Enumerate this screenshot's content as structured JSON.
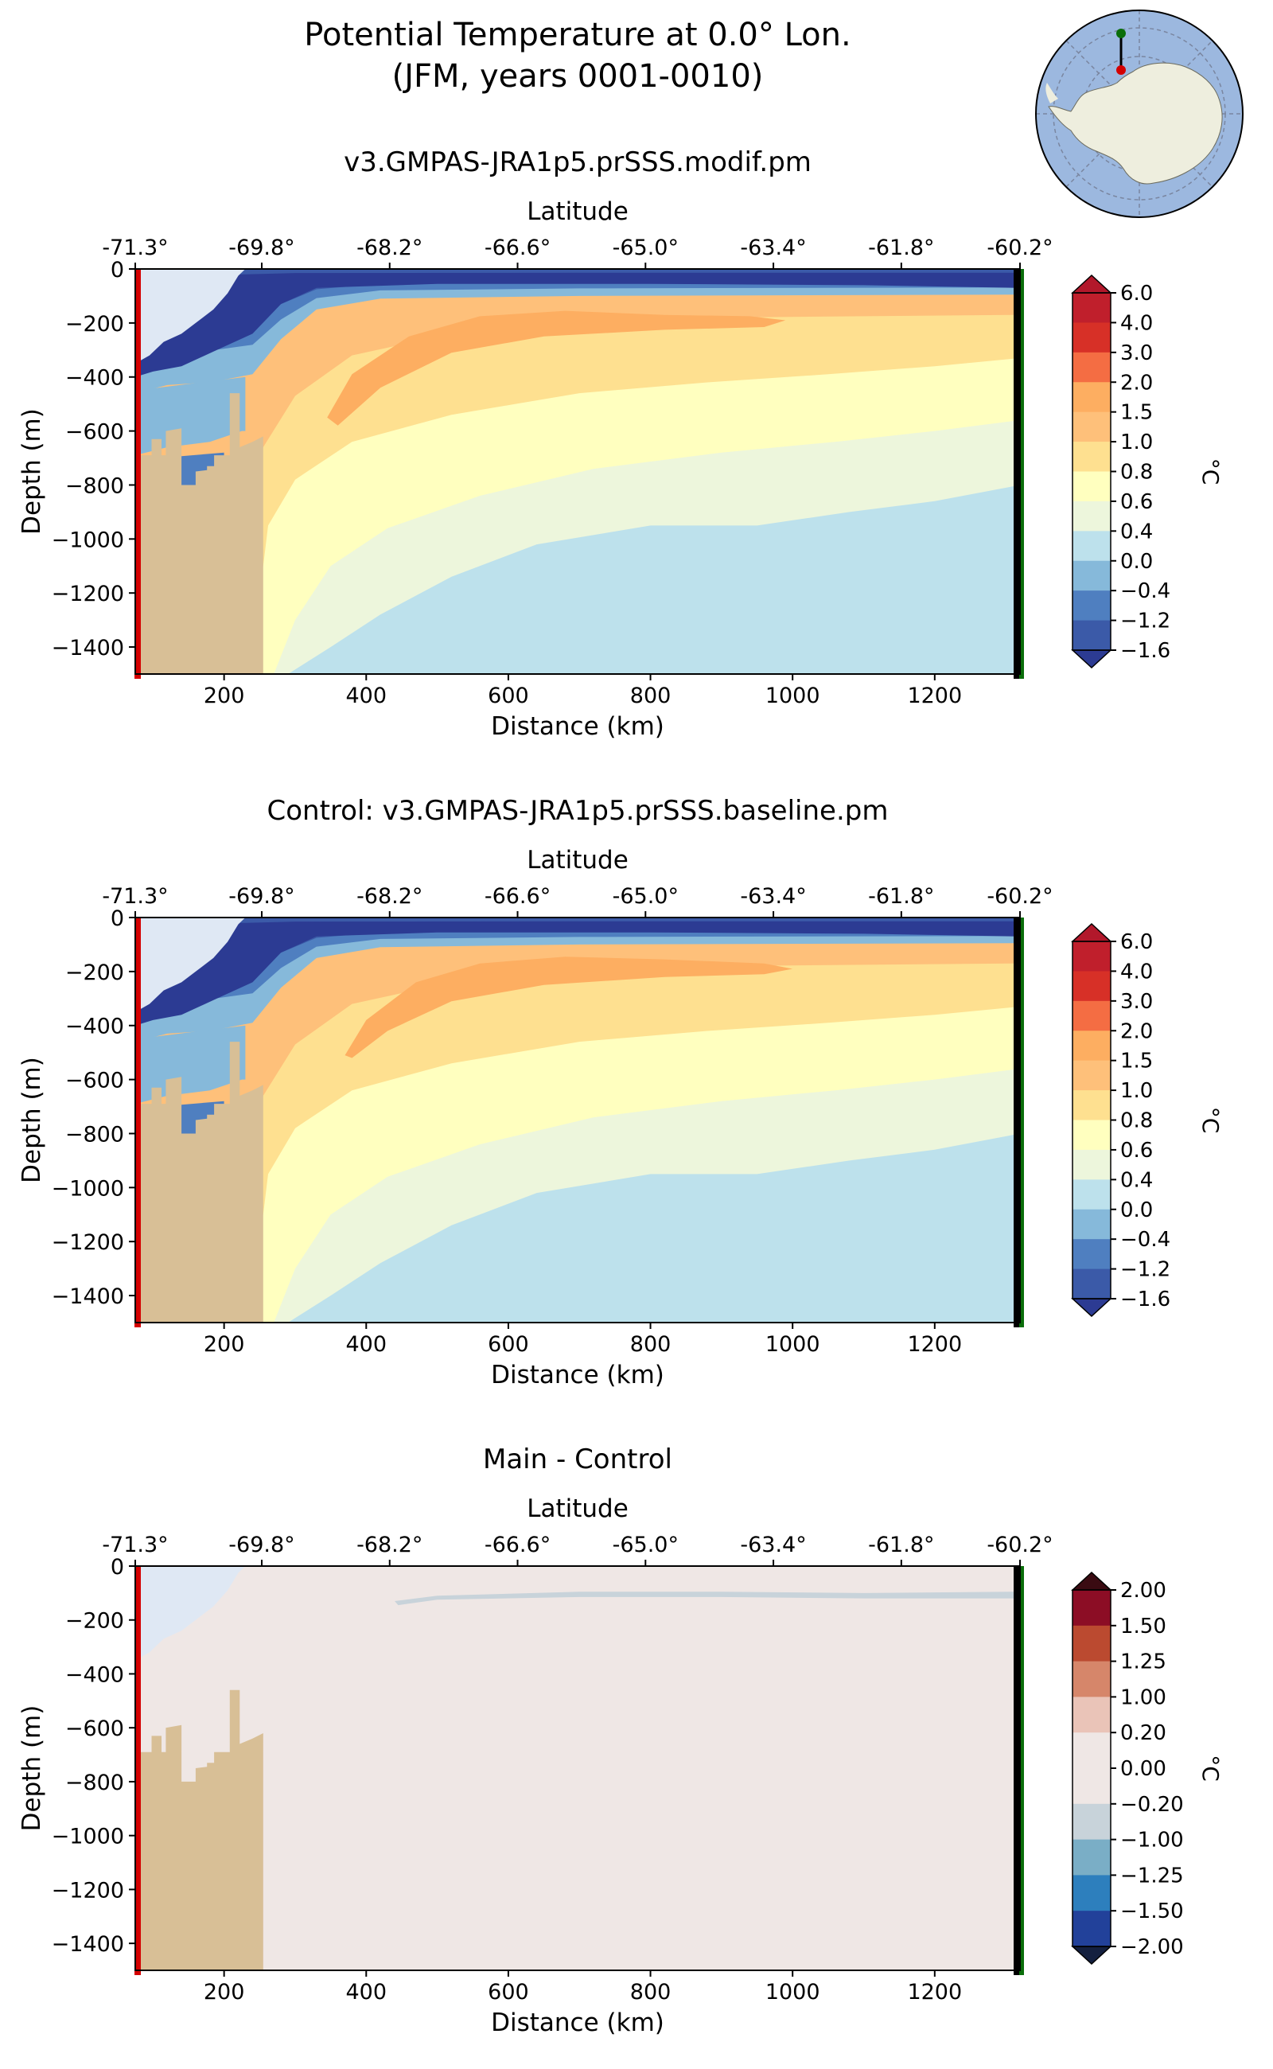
{
  "figure": {
    "title_line1": "Potential Temperature at 0.0° Lon.",
    "title_line2": "(JFM, years 0001-0010)"
  },
  "colors": {
    "land": "#d8bf96",
    "ice_shelf_cavity": "#dfe8f4",
    "start_marker": "#d40000",
    "end_marker": "#0a6e0a",
    "map_ocean": "#9cb8df",
    "map_land": "#eeeede"
  },
  "chart_data": [
    {
      "type": "heatmap",
      "title": "v3.GMPAS-JRA1p5.prSSS.modif.pm",
      "xlabel": "Distance (km)",
      "ylabel": "Depth (m)",
      "top_xlabel": "Latitude",
      "xlim": [
        75,
        1320
      ],
      "ylim": [
        -1500,
        0
      ],
      "x_ticks": [
        200,
        400,
        600,
        800,
        1000,
        1200
      ],
      "y_ticks": [
        0,
        -200,
        -400,
        -600,
        -800,
        -1000,
        -1200,
        -1400
      ],
      "y_tick_labels": [
        "0",
        "−200",
        "−400",
        "−600",
        "−800",
        "−1000",
        "−1200",
        "−1400"
      ],
      "latitude_ticks": [
        "-71.3°",
        "-69.8°",
        "-68.2°",
        "-66.6°",
        "-65.0°",
        "-63.4°",
        "-61.8°",
        "-60.2°"
      ],
      "latitude_tick_distance_km": [
        75,
        253,
        433,
        613,
        793,
        973,
        1153,
        1320
      ],
      "colorbar": {
        "label": "°C",
        "levels": [
          "6.0",
          "4.0",
          "3.0",
          "2.0",
          "1.5",
          "1.0",
          "0.8",
          "0.6",
          "0.4",
          "0.0",
          "−0.4",
          "−1.2",
          "−1.6"
        ],
        "colors": [
          "#c01f2c",
          "#d73027",
          "#f46d43",
          "#fdae61",
          "#fec07a",
          "#fee090",
          "#ffffbf",
          "#edf6dc",
          "#bde1ec",
          "#86b9da",
          "#4f7fc0",
          "#3b5aa8"
        ],
        "over_color": "#b2182b",
        "under_color": "#2c3b93"
      },
      "contour_depths_m": {
        "isotherm_0_0": [
          [
            290,
            -1500
          ],
          [
            350,
            -1400
          ],
          [
            420,
            -1280
          ],
          [
            520,
            -1140
          ],
          [
            640,
            -1020
          ],
          [
            800,
            -950
          ],
          [
            950,
            -950
          ],
          [
            1080,
            -900
          ],
          [
            1200,
            -860
          ],
          [
            1320,
            -800
          ]
        ],
        "isotherm_0_4": [
          [
            270,
            -1500
          ],
          [
            300,
            -1300
          ],
          [
            350,
            -1100
          ],
          [
            430,
            -960
          ],
          [
            560,
            -840
          ],
          [
            720,
            -740
          ],
          [
            900,
            -680
          ],
          [
            1060,
            -640
          ],
          [
            1200,
            -600
          ],
          [
            1320,
            -560
          ]
        ],
        "isotherm_0_6": [
          [
            255,
            -1100
          ],
          [
            262,
            -950
          ],
          [
            300,
            -780
          ],
          [
            380,
            -640
          ],
          [
            520,
            -540
          ],
          [
            700,
            -460
          ],
          [
            880,
            -420
          ],
          [
            1050,
            -390
          ],
          [
            1200,
            -360
          ],
          [
            1320,
            -330
          ]
        ],
        "isotherm_1_0": [
          [
            255,
            -660
          ],
          [
            300,
            -470
          ],
          [
            380,
            -320
          ],
          [
            520,
            -240
          ],
          [
            700,
            -200
          ],
          [
            900,
            -180
          ],
          [
            1100,
            -175
          ],
          [
            1320,
            -170
          ]
        ],
        "warm_core_1_5": [
          [
            345,
            -550
          ],
          [
            380,
            -390
          ],
          [
            460,
            -250
          ],
          [
            560,
            -175
          ],
          [
            680,
            -155
          ],
          [
            820,
            -170
          ],
          [
            940,
            -175
          ],
          [
            990,
            -190
          ],
          [
            960,
            -215
          ],
          [
            820,
            -225
          ],
          [
            650,
            -250
          ],
          [
            520,
            -310
          ],
          [
            420,
            -440
          ],
          [
            360,
            -580
          ]
        ]
      },
      "shelf_blues": {
        "lightblue_bottom_depth": [
          [
            75,
            -690
          ],
          [
            120,
            -660
          ],
          [
            180,
            -640
          ],
          [
            225,
            -600
          ]
        ],
        "cold_layer_bottom": [
          [
            75,
            -460
          ],
          [
            120,
            -430
          ],
          [
            180,
            -420
          ],
          [
            240,
            -390
          ],
          [
            280,
            -260
          ],
          [
            330,
            -150
          ],
          [
            420,
            -110
          ],
          [
            700,
            -100
          ],
          [
            1320,
            -95
          ]
        ]
      }
    },
    {
      "type": "heatmap",
      "title": "Control: v3.GMPAS-JRA1p5.prSSS.baseline.pm",
      "xlabel": "Distance (km)",
      "ylabel": "Depth (m)",
      "top_xlabel": "Latitude",
      "xlim": [
        75,
        1320
      ],
      "ylim": [
        -1500,
        0
      ],
      "x_ticks": [
        200,
        400,
        600,
        800,
        1000,
        1200
      ],
      "y_ticks": [
        0,
        -200,
        -400,
        -600,
        -800,
        -1000,
        -1200,
        -1400
      ],
      "y_tick_labels": [
        "0",
        "−200",
        "−400",
        "−600",
        "−800",
        "−1000",
        "−1200",
        "−1400"
      ],
      "latitude_ticks": [
        "-71.3°",
        "-69.8°",
        "-68.2°",
        "-66.6°",
        "-65.0°",
        "-63.4°",
        "-61.8°",
        "-60.2°"
      ],
      "latitude_tick_distance_km": [
        75,
        253,
        433,
        613,
        793,
        973,
        1153,
        1320
      ],
      "colorbar": {
        "label": "°C",
        "levels": [
          "6.0",
          "4.0",
          "3.0",
          "2.0",
          "1.5",
          "1.0",
          "0.8",
          "0.6",
          "0.4",
          "0.0",
          "−0.4",
          "−1.2",
          "−1.6"
        ],
        "colors": [
          "#c01f2c",
          "#d73027",
          "#f46d43",
          "#fdae61",
          "#fec07a",
          "#fee090",
          "#ffffbf",
          "#edf6dc",
          "#bde1ec",
          "#86b9da",
          "#4f7fc0",
          "#3b5aa8"
        ],
        "over_color": "#b2182b",
        "under_color": "#2c3b93"
      },
      "contour_depths_m": {
        "isotherm_0_0": [
          [
            290,
            -1500
          ],
          [
            350,
            -1400
          ],
          [
            420,
            -1280
          ],
          [
            520,
            -1140
          ],
          [
            640,
            -1020
          ],
          [
            800,
            -950
          ],
          [
            950,
            -950
          ],
          [
            1080,
            -900
          ],
          [
            1200,
            -860
          ],
          [
            1320,
            -800
          ]
        ],
        "isotherm_0_4": [
          [
            270,
            -1500
          ],
          [
            300,
            -1300
          ],
          [
            350,
            -1100
          ],
          [
            430,
            -960
          ],
          [
            560,
            -840
          ],
          [
            720,
            -740
          ],
          [
            900,
            -680
          ],
          [
            1060,
            -640
          ],
          [
            1200,
            -600
          ],
          [
            1320,
            -560
          ]
        ],
        "isotherm_0_6": [
          [
            255,
            -1100
          ],
          [
            262,
            -950
          ],
          [
            300,
            -780
          ],
          [
            380,
            -640
          ],
          [
            520,
            -540
          ],
          [
            700,
            -460
          ],
          [
            880,
            -420
          ],
          [
            1050,
            -390
          ],
          [
            1200,
            -360
          ],
          [
            1320,
            -330
          ]
        ],
        "isotherm_1_0": [
          [
            255,
            -660
          ],
          [
            300,
            -470
          ],
          [
            380,
            -320
          ],
          [
            520,
            -240
          ],
          [
            700,
            -200
          ],
          [
            900,
            -180
          ],
          [
            1100,
            -175
          ],
          [
            1320,
            -170
          ]
        ],
        "warm_core_1_5": [
          [
            370,
            -510
          ],
          [
            400,
            -380
          ],
          [
            470,
            -240
          ],
          [
            560,
            -170
          ],
          [
            680,
            -145
          ],
          [
            820,
            -155
          ],
          [
            960,
            -170
          ],
          [
            1000,
            -190
          ],
          [
            960,
            -210
          ],
          [
            820,
            -220
          ],
          [
            650,
            -250
          ],
          [
            520,
            -310
          ],
          [
            430,
            -420
          ],
          [
            380,
            -520
          ]
        ]
      },
      "shelf_blues": {
        "lightblue_bottom_depth": [
          [
            75,
            -690
          ],
          [
            120,
            -660
          ],
          [
            180,
            -640
          ],
          [
            225,
            -600
          ]
        ],
        "cold_layer_bottom": [
          [
            75,
            -460
          ],
          [
            120,
            -430
          ],
          [
            180,
            -420
          ],
          [
            240,
            -390
          ],
          [
            280,
            -260
          ],
          [
            330,
            -150
          ],
          [
            420,
            -110
          ],
          [
            700,
            -100
          ],
          [
            1320,
            -95
          ]
        ]
      }
    },
    {
      "type": "heatmap",
      "title": "Main - Control",
      "xlabel": "Distance (km)",
      "ylabel": "Depth (m)",
      "top_xlabel": "Latitude",
      "xlim": [
        75,
        1320
      ],
      "ylim": [
        -1500,
        0
      ],
      "x_ticks": [
        200,
        400,
        600,
        800,
        1000,
        1200
      ],
      "y_ticks": [
        0,
        -200,
        -400,
        -600,
        -800,
        -1000,
        -1200,
        -1400
      ],
      "y_tick_labels": [
        "0",
        "−200",
        "−400",
        "−600",
        "−800",
        "−1000",
        "−1200",
        "−1400"
      ],
      "latitude_ticks": [
        "-71.3°",
        "-69.8°",
        "-68.2°",
        "-66.6°",
        "-65.0°",
        "-63.4°",
        "-61.8°",
        "-60.2°"
      ],
      "latitude_tick_distance_km": [
        75,
        253,
        433,
        613,
        793,
        973,
        1153,
        1320
      ],
      "colorbar": {
        "label": "°C",
        "levels": [
          "2.00",
          "1.50",
          "1.25",
          "1.00",
          "0.20",
          "0.00",
          "−0.20",
          "−1.00",
          "−1.25",
          "−1.50",
          "−2.00"
        ],
        "colors": [
          "#8c0d25",
          "#bb4a30",
          "#d6866a",
          "#eac4b8",
          "#efe7e5",
          "#efe7e5",
          "#c8d3da",
          "#7aaec6",
          "#2d7fbd",
          "#22419a"
        ],
        "over_color": "#3a0b12",
        "under_color": "#14203f"
      },
      "difference_feature": {
        "level": "−0.20 to 0.00",
        "band": [
          [
            440,
            -130
          ],
          [
            500,
            -110
          ],
          [
            700,
            -95
          ],
          [
            900,
            -95
          ],
          [
            1100,
            -100
          ],
          [
            1320,
            -95
          ],
          [
            1320,
            -120
          ],
          [
            1100,
            -120
          ],
          [
            900,
            -115
          ],
          [
            700,
            -115
          ],
          [
            500,
            -125
          ],
          [
            445,
            -145
          ]
        ]
      }
    }
  ],
  "bathymetry_km_m": [
    [
      75,
      -690
    ],
    [
      98,
      -690
    ],
    [
      98,
      -630
    ],
    [
      112,
      -630
    ],
    [
      112,
      -690
    ],
    [
      118,
      -690
    ],
    [
      118,
      -600
    ],
    [
      140,
      -590
    ],
    [
      140,
      -800
    ],
    [
      160,
      -800
    ],
    [
      160,
      -750
    ],
    [
      176,
      -745
    ],
    [
      176,
      -730
    ],
    [
      186,
      -730
    ],
    [
      186,
      -690
    ],
    [
      208,
      -690
    ],
    [
      208,
      -460
    ],
    [
      222,
      -460
    ],
    [
      222,
      -660
    ],
    [
      240,
      -640
    ],
    [
      255,
      -620
    ],
    [
      255,
      -1500
    ],
    [
      75,
      -1500
    ]
  ],
  "ice_shelf_km_m": [
    [
      75,
      0
    ],
    [
      230,
      0
    ],
    [
      220,
      -25
    ],
    [
      205,
      -90
    ],
    [
      185,
      -150
    ],
    [
      160,
      -200
    ],
    [
      140,
      -240
    ],
    [
      115,
      -270
    ],
    [
      95,
      -320
    ],
    [
      75,
      -350
    ]
  ],
  "inset_map": {
    "description": "polar stereographic inset of Antarctica showing the transect"
  }
}
